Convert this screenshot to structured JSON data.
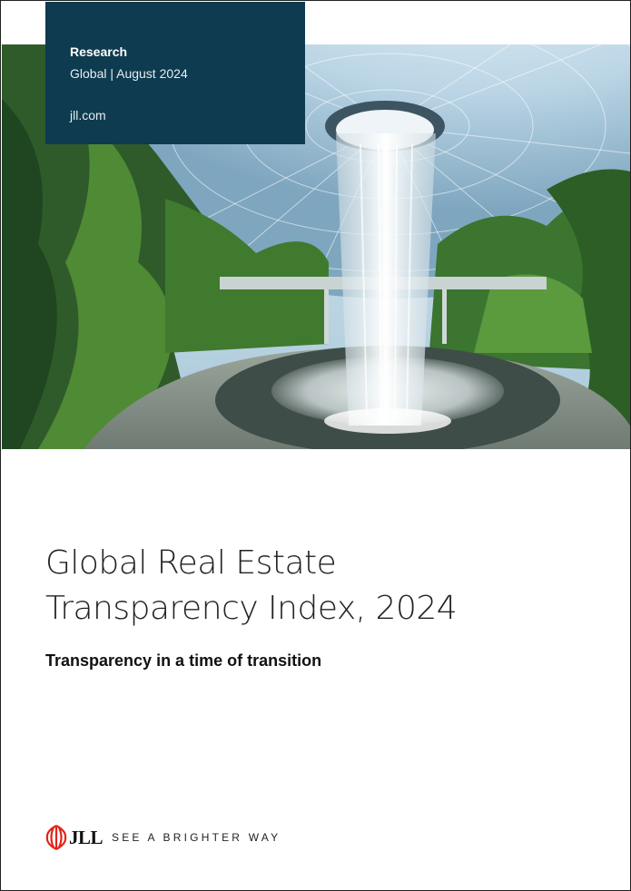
{
  "header_tab": {
    "label": "Research",
    "subtitle": "Global | August 2024",
    "url": "jll.com",
    "background_color": "#0e3b4f"
  },
  "hero_image": {
    "description_icon": "indoor-waterfall-photo"
  },
  "title": {
    "line1": "Global Real Estate",
    "line2": "Transparency Index, 2024"
  },
  "subtitle": "Transparency in a time of transition",
  "footer": {
    "logo_text": "JLL",
    "logo_color": "#e1251b",
    "tagline": "SEE A BRIGHTER WAY"
  }
}
